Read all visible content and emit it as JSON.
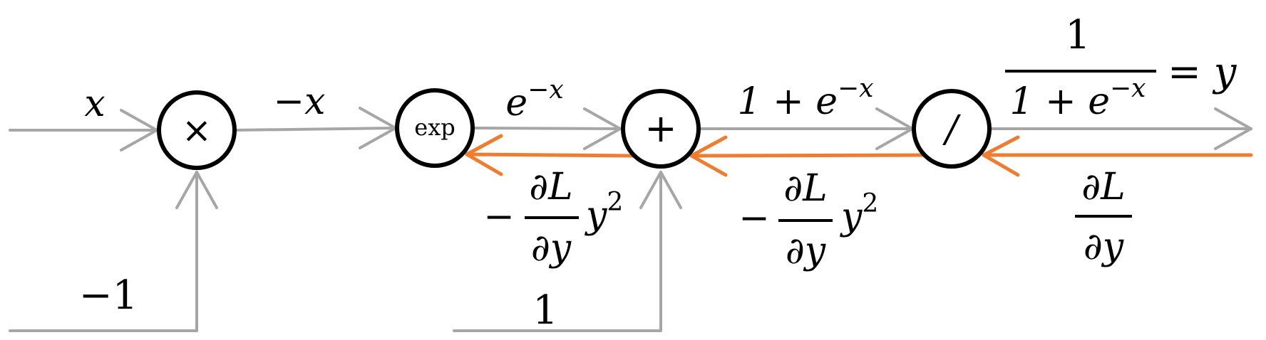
{
  "colors": {
    "forward": "#a6a6a6",
    "backward": "#ed7d31",
    "node_stroke": "#000000"
  },
  "nodes": {
    "multiply": "×",
    "exp": "exp",
    "add": "+",
    "divide": "/"
  },
  "forward_labels": {
    "input_x": "x",
    "neg_x": "−x",
    "exp_neg_x": "e",
    "exp_neg_x_sup": "−x",
    "one_plus_exp": "1 + e",
    "one_plus_exp_sup": "−x",
    "const_neg1": "−1",
    "const_1": "1",
    "out_numerator": "1",
    "out_denominator": "1 + e",
    "out_denominator_sup": "−x",
    "out_equals": "= y"
  },
  "backward_labels": {
    "grad_out_num": "∂L",
    "grad_out_den": "∂y",
    "grad_div_minus": "−",
    "grad_div_num": "∂L",
    "grad_div_den": "∂y",
    "grad_div_y": "y",
    "grad_div_sup": "2",
    "grad_add_minus": "−",
    "grad_add_num": "∂L",
    "grad_add_den": "∂y",
    "grad_add_y": "y",
    "grad_add_sup": "2"
  }
}
